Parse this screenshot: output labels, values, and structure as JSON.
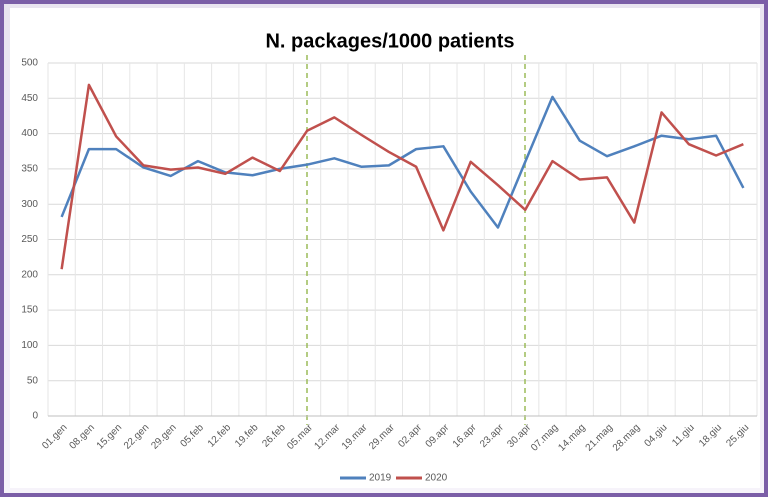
{
  "chart_data": {
    "type": "line",
    "title": "N. packages/1000 patients",
    "categories": [
      "01.gen",
      "08.gen",
      "15.gen",
      "22.gen",
      "29.gen",
      "05.feb",
      "12.feb",
      "19.feb",
      "26.feb",
      "05.mar",
      "12.mar",
      "19.mar",
      "29.mar",
      "02.apr",
      "09.apr",
      "16.apr",
      "23.apr",
      "30.apr",
      "07.mag",
      "14.mag",
      "21.mag",
      "28.mag",
      "04.giu",
      "11.giu",
      "18.giu",
      "25.giu"
    ],
    "series": [
      {
        "name": "2019",
        "color": "#4f81bd",
        "values": [
          282,
          378,
          378,
          352,
          340,
          361,
          345,
          341,
          350,
          356,
          365,
          353,
          355,
          378,
          382,
          318,
          267,
          360,
          452,
          390,
          368,
          382,
          397,
          392,
          397,
          323
        ]
      },
      {
        "name": "2020",
        "color": "#c0504d",
        "values": [
          208,
          469,
          396,
          355,
          349,
          352,
          343,
          366,
          347,
          404,
          423,
          398,
          374,
          353,
          263,
          360,
          327,
          292,
          361,
          335,
          338,
          274,
          430,
          385,
          369,
          385
        ]
      }
    ],
    "ylim": [
      0,
      500
    ],
    "yticks": [
      0,
      50,
      100,
      150,
      200,
      250,
      300,
      350,
      400,
      450,
      500
    ],
    "grid": true,
    "legend": "bottom"
  }
}
